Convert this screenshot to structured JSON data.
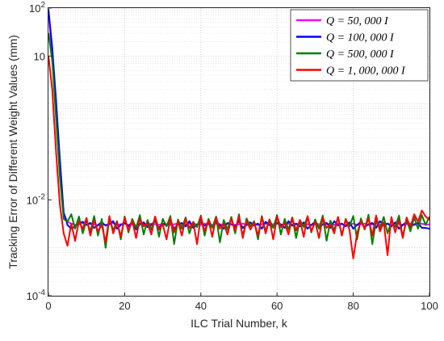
{
  "chart_data": {
    "type": "line",
    "title": "",
    "xlabel": "ILC Trial Number, k",
    "ylabel": "Tracking Error of Different Weight Values (mm)",
    "xlim": [
      0,
      100
    ],
    "ylim": [
      0.0001,
      100
    ],
    "yscale": "log",
    "grid": true,
    "minor_grid": true,
    "legend_position": "top-right",
    "x_ticks": [
      0,
      20,
      40,
      60,
      80,
      100
    ],
    "x_tick_labels": [
      "0",
      "20",
      "40",
      "60",
      "80",
      "100"
    ],
    "y_ticks": [
      0.0001,
      0.01,
      10,
      100
    ],
    "y_tick_labels": [
      {
        "base": "10",
        "exp": "-4"
      },
      {
        "base": "10",
        "exp": "-2"
      },
      {
        "base": "10",
        "exp": ""
      },
      {
        "base": "10",
        "exp": "2"
      }
    ],
    "x": [
      0,
      1,
      2,
      3,
      4,
      5,
      6,
      7,
      8,
      9,
      10,
      11,
      12,
      13,
      14,
      15,
      16,
      17,
      18,
      19,
      20,
      21,
      22,
      23,
      24,
      25,
      26,
      27,
      28,
      29,
      30,
      31,
      32,
      33,
      34,
      35,
      36,
      37,
      38,
      39,
      40,
      41,
      42,
      43,
      44,
      45,
      46,
      47,
      48,
      49,
      50,
      51,
      52,
      53,
      54,
      55,
      56,
      57,
      58,
      59,
      60,
      61,
      62,
      63,
      64,
      65,
      66,
      67,
      68,
      69,
      70,
      71,
      72,
      73,
      74,
      75,
      76,
      77,
      78,
      79,
      80,
      81,
      82,
      83,
      84,
      85,
      86,
      87,
      88,
      89,
      90,
      91,
      92,
      93,
      94,
      95,
      96,
      97,
      98,
      99,
      100
    ],
    "series": [
      {
        "name": "Q = 50, 000 I",
        "color": "#ff00ff",
        "values": [
          90,
          10,
          0.8,
          0.05,
          0.005,
          0.0035,
          0.0032,
          0.003,
          0.0031,
          0.0033,
          0.003,
          0.0032,
          0.0031,
          0.0029,
          0.0032,
          0.003,
          0.0031,
          0.0033,
          0.003,
          0.0031,
          0.0032,
          0.003,
          0.0031,
          0.0029,
          0.0032,
          0.0031,
          0.003,
          0.0032,
          0.0031,
          0.003,
          0.0032,
          0.0031,
          0.003,
          0.0031,
          0.0032,
          0.003,
          0.0031,
          0.0032,
          0.003,
          0.0031,
          0.003,
          0.0032,
          0.0031,
          0.003,
          0.0032,
          0.0031,
          0.003,
          0.0032,
          0.0031,
          0.003,
          0.0031,
          0.0032,
          0.003,
          0.0031,
          0.0032,
          0.003,
          0.0031,
          0.0032,
          0.003,
          0.0031,
          0.0032,
          0.003,
          0.0031,
          0.0032,
          0.003,
          0.0031,
          0.0032,
          0.003,
          0.0031,
          0.003,
          0.0032,
          0.0031,
          0.003,
          0.0032,
          0.0031,
          0.003,
          0.0032,
          0.0031,
          0.003,
          0.0031,
          0.0032,
          0.003,
          0.0031,
          0.0032,
          0.003,
          0.0031,
          0.0032,
          0.003,
          0.0031,
          0.0032,
          0.003,
          0.0031,
          0.0032,
          0.003,
          0.0031,
          0.0032,
          0.003,
          0.0031,
          0.0032,
          0.003,
          0.0031
        ]
      },
      {
        "name": "Q = 100, 000 I",
        "color": "#0000ff",
        "values": [
          95,
          15,
          1.2,
          0.07,
          0.0055,
          0.003,
          0.0025,
          0.0028,
          0.0032,
          0.0035,
          0.003,
          0.0033,
          0.0026,
          0.003,
          0.0034,
          0.0029,
          0.0031,
          0.0036,
          0.0025,
          0.003,
          0.0033,
          0.0028,
          0.0035,
          0.0024,
          0.0031,
          0.0034,
          0.0027,
          0.003,
          0.0036,
          0.0026,
          0.0032,
          0.0029,
          0.0035,
          0.0025,
          0.0031,
          0.0033,
          0.0028,
          0.0036,
          0.0026,
          0.003,
          0.0034,
          0.0029,
          0.0032,
          0.0027,
          0.0035,
          0.003,
          0.0025,
          0.0033,
          0.0031,
          0.0028,
          0.0036,
          0.0026,
          0.003,
          0.0034,
          0.0029,
          0.0032,
          0.0025,
          0.0035,
          0.003,
          0.0027,
          0.0033,
          0.0031,
          0.0026,
          0.0036,
          0.0029,
          0.0032,
          0.0028,
          0.0034,
          0.0025,
          0.003,
          0.0035,
          0.0027,
          0.0031,
          0.0033,
          0.0026,
          0.0036,
          0.0029,
          0.0032,
          0.0028,
          0.0034,
          0.0025,
          0.003,
          0.0035,
          0.0027,
          0.0031,
          0.0033,
          0.0026,
          0.0036,
          0.0029,
          0.0032,
          0.0028,
          0.0034,
          0.0025,
          0.003,
          0.0035,
          0.0027,
          0.0031,
          0.0033,
          0.0026,
          0.0026,
          0.0025
        ]
      },
      {
        "name": "Q = 500, 000 I",
        "color": "#008000",
        "values": [
          30,
          8,
          0.5,
          0.03,
          0.004,
          0.0035,
          0.005,
          0.0025,
          0.0045,
          0.002,
          0.0038,
          0.0022,
          0.0046,
          0.0018,
          0.004,
          0.001,
          0.0042,
          0.0023,
          0.0036,
          0.0015,
          0.0045,
          0.0021,
          0.004,
          0.0026,
          0.0048,
          0.0019,
          0.0038,
          0.0024,
          0.0044,
          0.0017,
          0.004,
          0.0028,
          0.0046,
          0.0012,
          0.0039,
          0.0025,
          0.0043,
          0.002,
          0.0035,
          0.0027,
          0.0047,
          0.0018,
          0.004,
          0.0026,
          0.0045,
          0.0013,
          0.0038,
          0.0024,
          0.0044,
          0.002,
          0.005,
          0.0017,
          0.0041,
          0.0028,
          0.0036,
          0.0015,
          0.0046,
          0.0022,
          0.0039,
          0.0026,
          0.0048,
          0.0019,
          0.004,
          0.0024,
          0.0043,
          0.0016,
          0.0038,
          0.0027,
          0.0045,
          0.0021,
          0.0039,
          0.0025,
          0.0047,
          0.0014,
          0.0037,
          0.0023,
          0.0044,
          0.0018,
          0.004,
          0.0028,
          0.0046,
          0.0015,
          0.0041,
          0.0024,
          0.0049,
          0.0012,
          0.0038,
          0.0026,
          0.0044,
          0.002,
          0.0036,
          0.0027,
          0.0047,
          0.0017,
          0.0039,
          0.0022,
          0.0043,
          0.0025,
          0.0048,
          0.003,
          0.0045
        ]
      },
      {
        "name": "Q = 1, 000, 000 I",
        "color": "#ff0000",
        "values": [
          10,
          2,
          0.1,
          0.008,
          0.002,
          0.0011,
          0.0032,
          0.0014,
          0.0036,
          0.0025,
          0.0042,
          0.0018,
          0.0038,
          0.0022,
          0.003,
          0.0013,
          0.0046,
          0.002,
          0.0035,
          0.0017,
          0.0043,
          0.0023,
          0.0037,
          0.0016,
          0.004,
          0.0028,
          0.0033,
          0.0019,
          0.0045,
          0.0024,
          0.0031,
          0.0015,
          0.0042,
          0.0021,
          0.0036,
          0.0018,
          0.004,
          0.0026,
          0.0034,
          0.0012,
          0.0045,
          0.0022,
          0.0038,
          0.0017,
          0.0043,
          0.0025,
          0.0032,
          0.0019,
          0.0041,
          0.0023,
          0.0046,
          0.0016,
          0.0037,
          0.0024,
          0.0034,
          0.0018,
          0.0044,
          0.002,
          0.0039,
          0.0015,
          0.0045,
          0.0027,
          0.0033,
          0.0019,
          0.0042,
          0.0023,
          0.0038,
          0.0017,
          0.0046,
          0.0022,
          0.0035,
          0.0016,
          0.0043,
          0.0026,
          0.0031,
          0.002,
          0.0044,
          0.0018,
          0.0039,
          0.0024,
          0.0006,
          0.002,
          0.0036,
          0.0025,
          0.0041,
          0.0018,
          0.0047,
          0.0022,
          0.0034,
          0.0007,
          0.0044,
          0.0021,
          0.0038,
          0.0016,
          0.0043,
          0.0027,
          0.005,
          0.0035,
          0.006,
          0.0045,
          0.0038
        ]
      }
    ]
  }
}
